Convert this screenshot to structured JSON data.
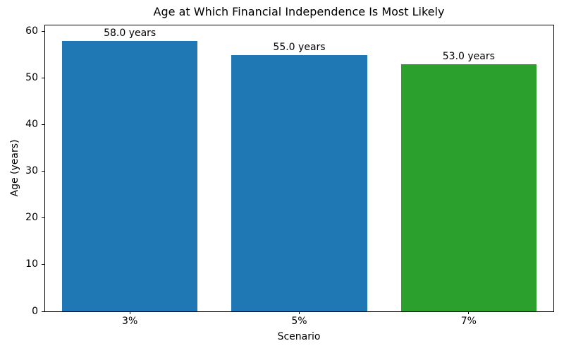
{
  "chart_data": {
    "type": "bar",
    "title": "Age at Which Financial Independence Is Most Likely",
    "xlabel": "Scenario",
    "ylabel": "Age (years)",
    "categories": [
      "3%",
      "5%",
      "7%"
    ],
    "values": [
      58.0,
      55.0,
      53.0
    ],
    "value_labels": [
      "58.0 years",
      "55.0 years",
      "53.0 years"
    ],
    "bar_colors": [
      "#1f77b4",
      "#1f77b4",
      "#2ca02c"
    ],
    "yticks": [
      0,
      10,
      20,
      30,
      40,
      50,
      60
    ],
    "ylim": [
      0,
      61.3
    ],
    "grid": false,
    "legend": null,
    "background": "#ffffff",
    "text_color": "#000000",
    "bar_width_fraction": 0.8
  }
}
